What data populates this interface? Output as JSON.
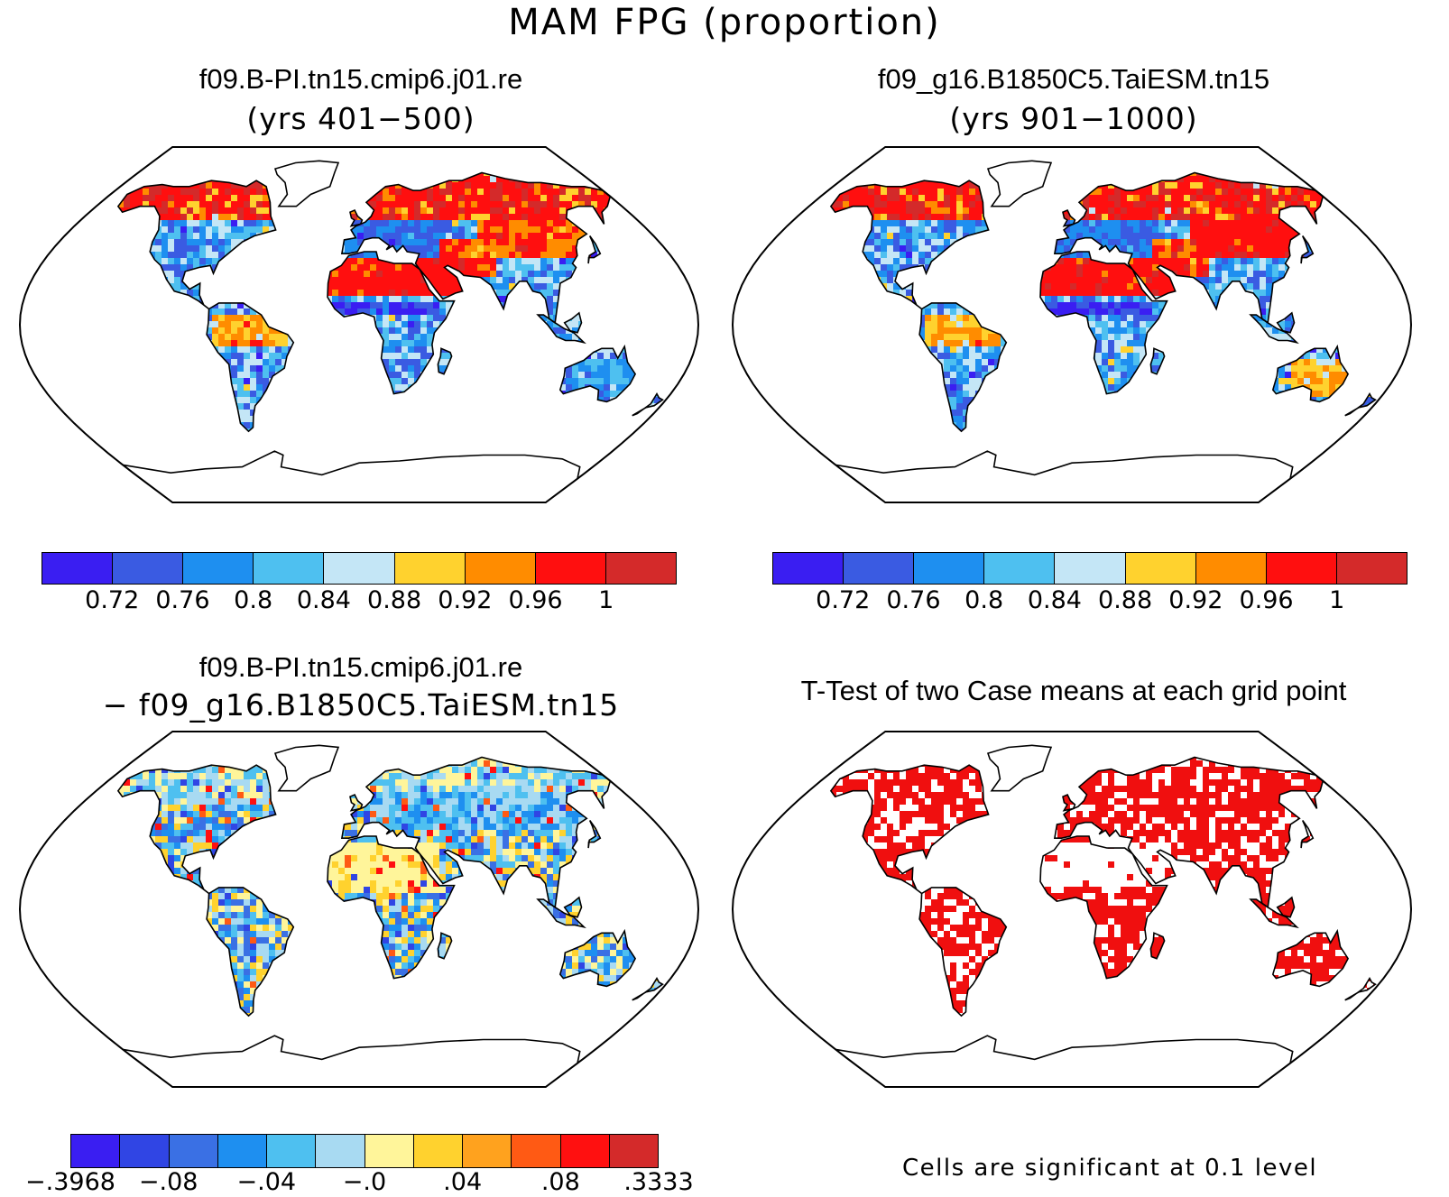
{
  "title": "MAM FPG (proportion)",
  "panels": [
    {
      "title": "f09.B-PI.tn15.cmip6.j01.re",
      "subtitle": "(yrs 401−500)"
    },
    {
      "title": "f09_g16.B1850C5.TaiESM.tn15",
      "subtitle": "(yrs 901−1000)"
    },
    {
      "title": "f09.B-PI.tn15.cmip6.j01.re",
      "subtitle": "− f09_g16.B1850C5.TaiESM.tn15"
    },
    {
      "title": "T-Test of two Case means at each grid point"
    }
  ],
  "colorbar_abs": {
    "colors": [
      "#3a1ef2",
      "#3a5be2",
      "#1e8ff0",
      "#4ec0f0",
      "#c4e6f6",
      "#ffd22e",
      "#ff8c00",
      "#ff0f0f",
      "#d42a2a"
    ],
    "labels": [
      "0.72",
      "0.76",
      "0.8",
      "0.84",
      "0.88",
      "0.92",
      "0.96",
      "1"
    ]
  },
  "colorbar_diff": {
    "colors": [
      "#3a1ef2",
      "#3045e4",
      "#3a70e4",
      "#1e8ff0",
      "#4ec0f0",
      "#a8daf2",
      "#fff59a",
      "#ffd22e",
      "#ffa21e",
      "#ff5a14",
      "#ff1010",
      "#d42a2a"
    ],
    "labels": [
      "−.3968",
      "−.08",
      "−.04",
      "−.0",
      ".04",
      ".08",
      ".3333"
    ]
  },
  "footnote": "Cells are significant at 0.1 level"
}
